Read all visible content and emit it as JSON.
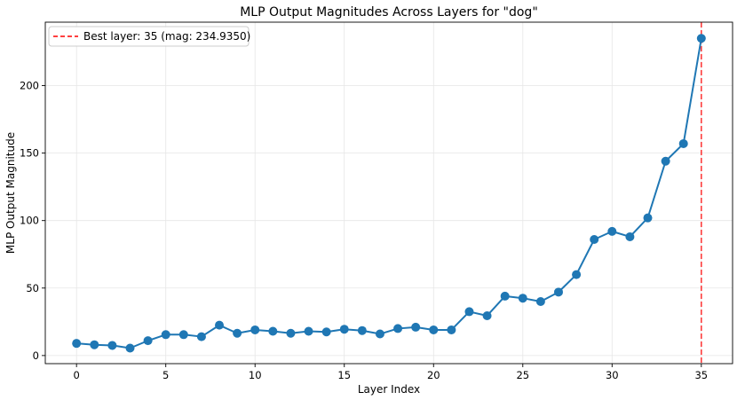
{
  "chart_data": {
    "type": "line",
    "title": "MLP Output Magnitudes Across Layers for \"dog\"",
    "xlabel": "Layer Index",
    "ylabel": "MLP Output Magnitude",
    "xlim": [
      -1.75,
      36.75
    ],
    "ylim": [
      -6,
      247
    ],
    "xticks": [
      0,
      5,
      10,
      15,
      20,
      25,
      30,
      35
    ],
    "yticks": [
      0,
      50,
      100,
      150,
      200
    ],
    "grid": true,
    "legend_position": "top-left",
    "colors": {
      "line": "#1f77b4",
      "marker": "#1f77b4",
      "best_line": "#ff0000"
    },
    "series": [
      {
        "x": [
          0,
          1,
          2,
          3,
          4,
          5,
          6,
          7,
          8,
          9,
          10,
          11,
          12,
          13,
          14,
          15,
          16,
          17,
          18,
          19,
          20,
          21,
          22,
          23,
          24,
          25,
          26,
          27,
          28,
          29,
          30,
          31,
          32,
          33,
          34,
          35
        ],
        "values": [
          9,
          8,
          7.5,
          5.5,
          11,
          15.5,
          15.5,
          14,
          22.5,
          16.5,
          19,
          18,
          16.5,
          18,
          17.5,
          19.5,
          18.5,
          16,
          20,
          21,
          19,
          19,
          32.5,
          29.5,
          44,
          42.5,
          40,
          47,
          60,
          86,
          92,
          88,
          102,
          144,
          157,
          235
        ]
      }
    ],
    "annotations": [
      {
        "type": "vline",
        "x": 35,
        "style": "dashed",
        "label": "Best layer: 35 (mag: 234.9350)"
      }
    ]
  }
}
